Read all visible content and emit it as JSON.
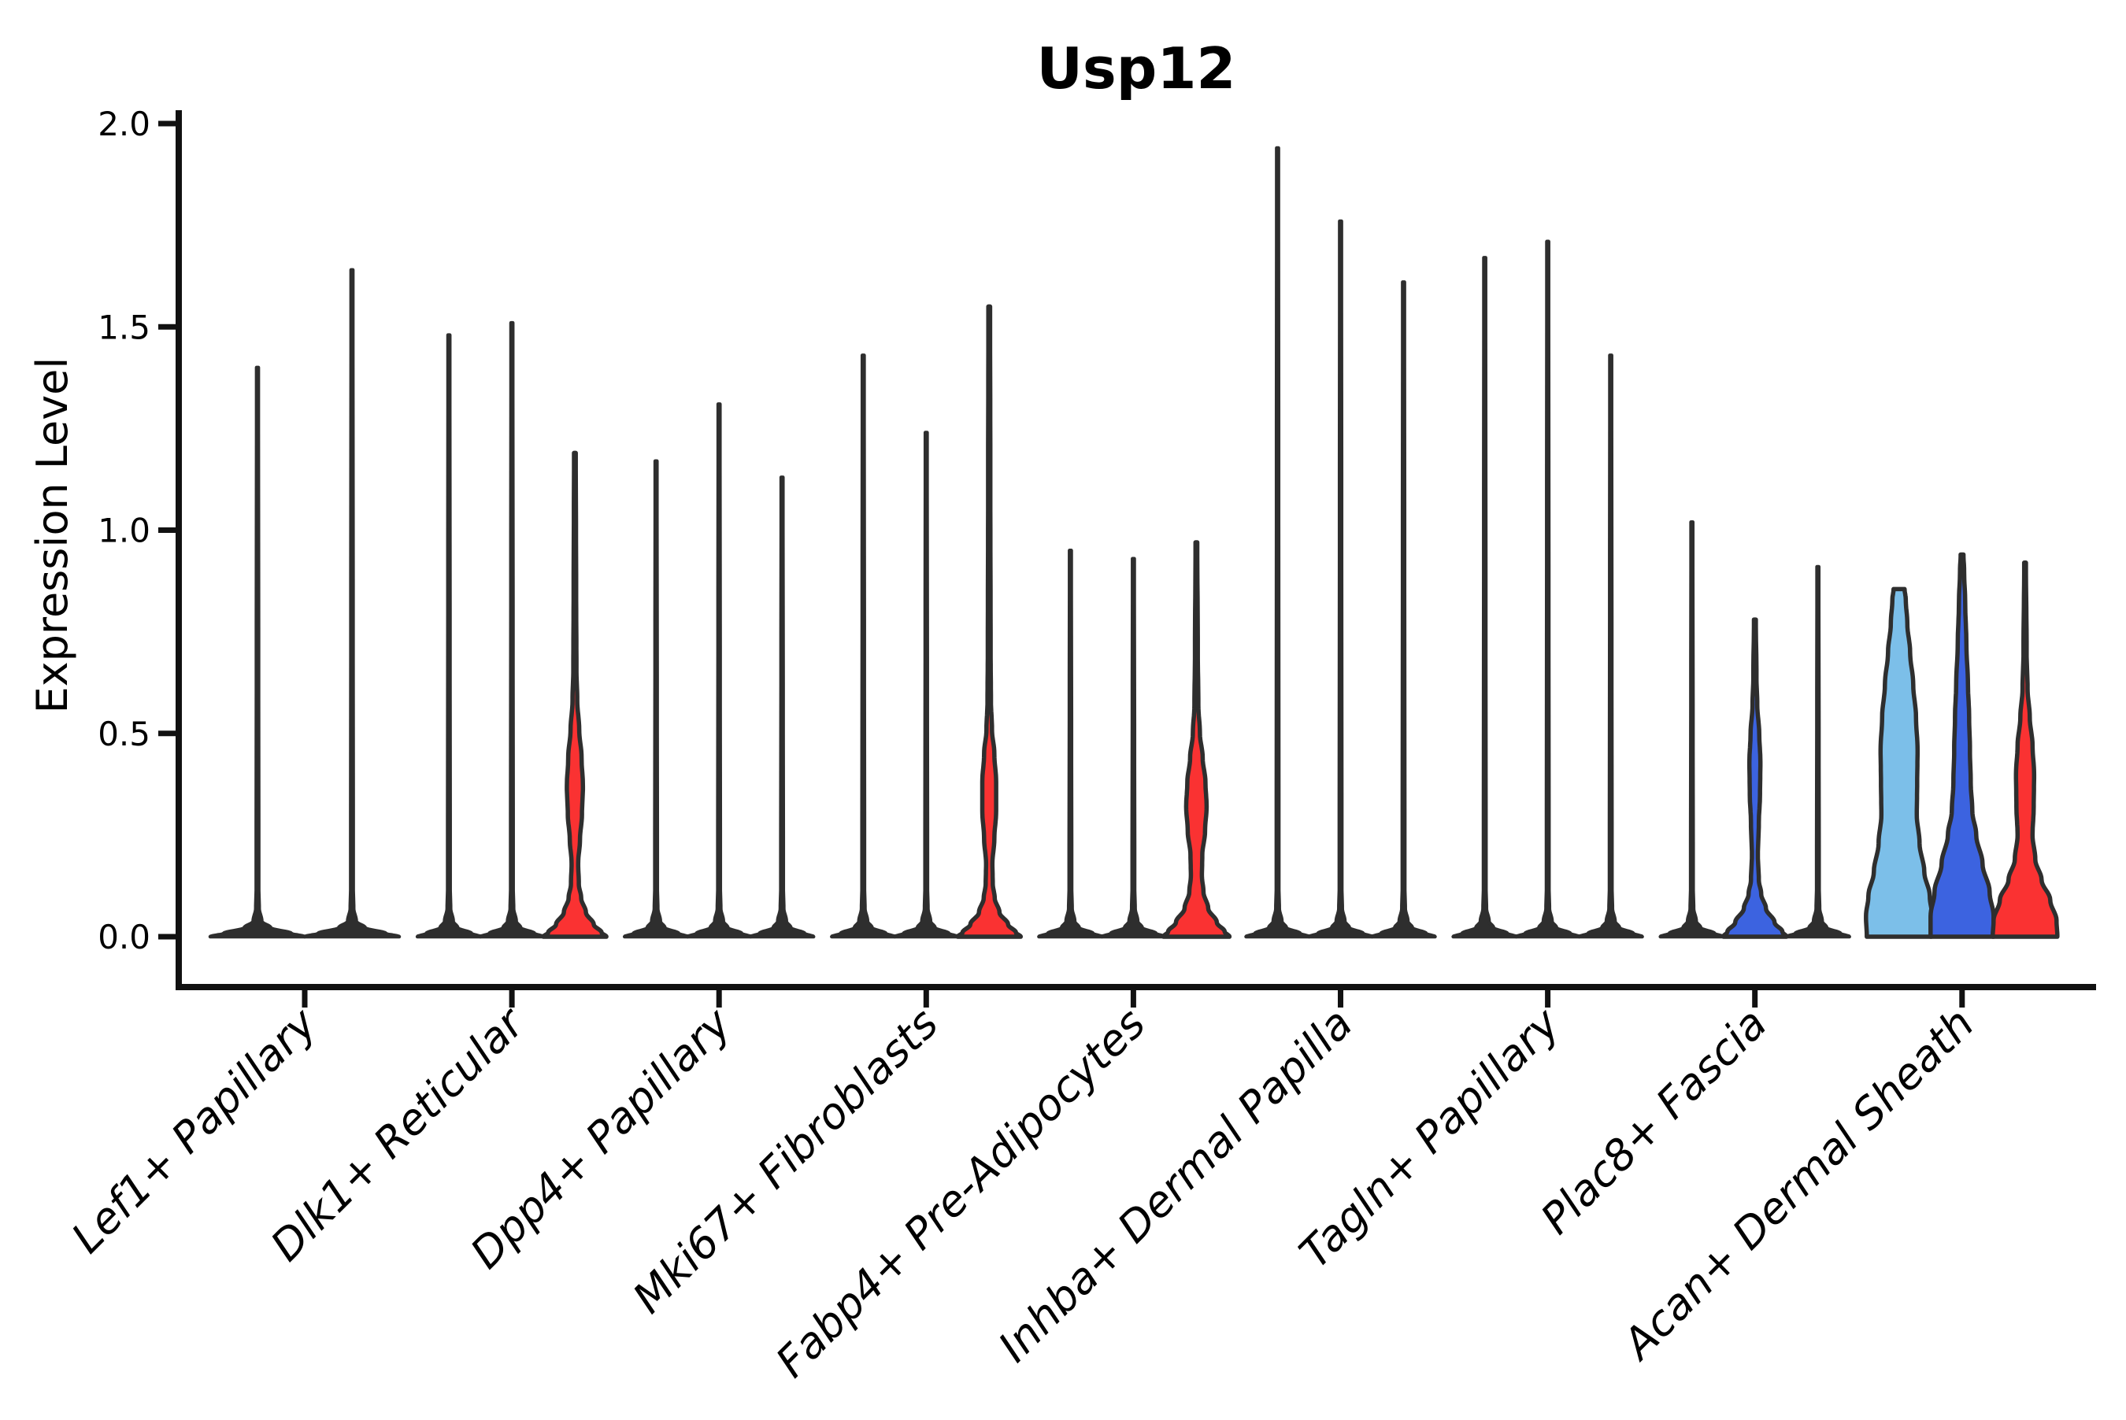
{
  "figure": {
    "kind": "violin-plot-screenshot"
  },
  "colors": {
    "background": "#ffffff",
    "axis": "#111111",
    "outline": "#2e2e2e",
    "red": "#fa3232",
    "blue": "#3c63e0",
    "lightblue": "#7cbfe9"
  },
  "chart_data": {
    "type": "violin",
    "title": "Usp12",
    "ylabel": "Expression Level",
    "xlabel": "",
    "ylim": [
      0,
      2.0
    ],
    "yticks": [
      0.0,
      0.5,
      1.0,
      1.5,
      2.0
    ],
    "grid": false,
    "legend": "none",
    "categories": [
      "Lef1+ Papillary",
      "Dlk1+ Reticular",
      "Dpp4+ Papillary",
      "Mki67+ Fibroblasts",
      "Fabp4+ Pre-Adipocytes",
      "Inhba+ Dermal Papilla",
      "Tagln+ Papillary",
      "Plac8+ Fascia",
      "Acan+ Dermal Sheath"
    ],
    "split_slot_colors": [
      "lightblue",
      "blue",
      "red"
    ],
    "violins": [
      {
        "category": 0,
        "slot": 0,
        "n": 2,
        "type": "spike",
        "fill": "outline",
        "base_hw": 60,
        "max": 1.4
      },
      {
        "category": 0,
        "slot": 1,
        "n": 2,
        "type": "spike",
        "fill": "outline",
        "base_hw": 60,
        "max": 1.64
      },
      {
        "category": 1,
        "slot": 0,
        "n": 3,
        "type": "spike",
        "fill": "outline",
        "base_hw": 40,
        "max": 1.48
      },
      {
        "category": 1,
        "slot": 1,
        "n": 3,
        "type": "spike",
        "fill": "outline",
        "base_hw": 40,
        "max": 1.51
      },
      {
        "category": 1,
        "slot": 2,
        "n": 3,
        "type": "shaped",
        "fill": "red",
        "max": 1.19,
        "profile": [
          [
            0,
            40
          ],
          [
            0.01,
            34
          ],
          [
            0.03,
            24
          ],
          [
            0.06,
            14
          ],
          [
            0.095,
            8
          ],
          [
            0.13,
            5
          ],
          [
            0.18,
            4.2
          ],
          [
            0.24,
            6.5
          ],
          [
            0.3,
            9
          ],
          [
            0.37,
            10.2
          ],
          [
            0.44,
            8.5
          ],
          [
            0.51,
            5.5
          ],
          [
            0.58,
            3
          ],
          [
            0.66,
            2
          ],
          [
            0.85,
            1.6
          ],
          [
            1.19,
            1.1
          ]
        ]
      },
      {
        "category": 2,
        "slot": 0,
        "n": 3,
        "type": "spike",
        "fill": "outline",
        "base_hw": 40,
        "max": 1.17
      },
      {
        "category": 2,
        "slot": 1,
        "n": 3,
        "type": "spike",
        "fill": "outline",
        "base_hw": 40,
        "max": 1.31
      },
      {
        "category": 2,
        "slot": 2,
        "n": 3,
        "type": "spike",
        "fill": "outline",
        "base_hw": 40,
        "max": 1.13
      },
      {
        "category": 3,
        "slot": 0,
        "n": 3,
        "type": "spike",
        "fill": "outline",
        "base_hw": 40,
        "max": 1.43
      },
      {
        "category": 3,
        "slot": 1,
        "n": 3,
        "type": "spike",
        "fill": "outline",
        "base_hw": 40,
        "max": 1.24
      },
      {
        "category": 3,
        "slot": 2,
        "n": 3,
        "type": "shaped",
        "fill": "red",
        "max": 1.55,
        "profile": [
          [
            0,
            40
          ],
          [
            0.01,
            34
          ],
          [
            0.03,
            24
          ],
          [
            0.06,
            13
          ],
          [
            0.095,
            7
          ],
          [
            0.13,
            4.5
          ],
          [
            0.18,
            4
          ],
          [
            0.24,
            6.5
          ],
          [
            0.31,
            8.8
          ],
          [
            0.38,
            8.8
          ],
          [
            0.45,
            6.5
          ],
          [
            0.51,
            3.5
          ],
          [
            0.58,
            2.2
          ],
          [
            0.7,
            1.8
          ],
          [
            1.1,
            1.4
          ],
          [
            1.55,
            1.1
          ]
        ]
      },
      {
        "category": 4,
        "slot": 0,
        "n": 3,
        "type": "spike",
        "fill": "outline",
        "base_hw": 40,
        "max": 0.95
      },
      {
        "category": 4,
        "slot": 1,
        "n": 3,
        "type": "spike",
        "fill": "outline",
        "base_hw": 40,
        "max": 0.93
      },
      {
        "category": 4,
        "slot": 2,
        "n": 3,
        "type": "shaped",
        "fill": "red",
        "max": 0.97,
        "profile": [
          [
            0,
            42
          ],
          [
            0.012,
            36
          ],
          [
            0.035,
            26
          ],
          [
            0.07,
            15
          ],
          [
            0.11,
            9
          ],
          [
            0.15,
            7
          ],
          [
            0.2,
            7.5
          ],
          [
            0.26,
            11
          ],
          [
            0.32,
            13
          ],
          [
            0.38,
            11.5
          ],
          [
            0.44,
            8
          ],
          [
            0.5,
            4.5
          ],
          [
            0.57,
            2.5
          ],
          [
            0.7,
            1.8
          ],
          [
            0.97,
            1.1
          ]
        ]
      },
      {
        "category": 5,
        "slot": 0,
        "n": 3,
        "type": "spike",
        "fill": "outline",
        "base_hw": 40,
        "max": 1.94
      },
      {
        "category": 5,
        "slot": 1,
        "n": 3,
        "type": "spike",
        "fill": "outline",
        "base_hw": 40,
        "max": 1.76
      },
      {
        "category": 5,
        "slot": 2,
        "n": 3,
        "type": "spike",
        "fill": "outline",
        "base_hw": 40,
        "max": 1.61
      },
      {
        "category": 6,
        "slot": 0,
        "n": 3,
        "type": "spike",
        "fill": "outline",
        "base_hw": 40,
        "max": 1.67
      },
      {
        "category": 6,
        "slot": 1,
        "n": 3,
        "type": "spike",
        "fill": "outline",
        "base_hw": 40,
        "max": 1.71
      },
      {
        "category": 6,
        "slot": 2,
        "n": 3,
        "type": "spike",
        "fill": "outline",
        "base_hw": 40,
        "max": 1.43
      },
      {
        "category": 7,
        "slot": 0,
        "n": 3,
        "type": "spike",
        "fill": "outline",
        "base_hw": 40,
        "max": 1.02
      },
      {
        "category": 7,
        "slot": 1,
        "n": 3,
        "type": "shaped",
        "fill": "blue",
        "max": 0.78,
        "profile": [
          [
            0,
            40
          ],
          [
            0.012,
            35
          ],
          [
            0.035,
            25
          ],
          [
            0.07,
            14
          ],
          [
            0.105,
            8
          ],
          [
            0.14,
            5
          ],
          [
            0.2,
            3.8
          ],
          [
            0.28,
            5
          ],
          [
            0.35,
            6.5
          ],
          [
            0.43,
            7
          ],
          [
            0.5,
            5.5
          ],
          [
            0.57,
            3
          ],
          [
            0.64,
            2
          ],
          [
            0.78,
            1.2
          ]
        ]
      },
      {
        "category": 7,
        "slot": 2,
        "n": 3,
        "type": "spike",
        "fill": "outline",
        "base_hw": 40,
        "max": 0.91
      },
      {
        "category": 8,
        "slot": 0,
        "n": 3,
        "type": "shaped",
        "fill": "lightblue",
        "max": 0.86,
        "profile": [
          [
            0,
            41
          ],
          [
            0.05,
            42
          ],
          [
            0.1,
            39
          ],
          [
            0.16,
            32
          ],
          [
            0.23,
            26
          ],
          [
            0.3,
            22.5
          ],
          [
            0.38,
            23
          ],
          [
            0.46,
            23.5
          ],
          [
            0.54,
            21.5
          ],
          [
            0.62,
            18
          ],
          [
            0.7,
            14
          ],
          [
            0.77,
            10.5
          ],
          [
            0.83,
            8.5
          ],
          [
            0.855,
            7
          ]
        ]
      },
      {
        "category": 8,
        "slot": 1,
        "n": 3,
        "type": "shaped",
        "fill": "blue",
        "max": 0.94,
        "profile": [
          [
            0,
            40
          ],
          [
            0.05,
            40
          ],
          [
            0.11,
            35
          ],
          [
            0.18,
            26
          ],
          [
            0.25,
            18
          ],
          [
            0.31,
            13
          ],
          [
            0.38,
            11
          ],
          [
            0.46,
            10
          ],
          [
            0.54,
            9
          ],
          [
            0.62,
            7.5
          ],
          [
            0.72,
            5.5
          ],
          [
            0.82,
            4
          ],
          [
            0.9,
            2.6
          ],
          [
            0.94,
            1.8
          ]
        ]
      },
      {
        "category": 8,
        "slot": 2,
        "n": 3,
        "type": "shaped",
        "fill": "red",
        "max": 0.92,
        "profile": [
          [
            0,
            41
          ],
          [
            0.04,
            40
          ],
          [
            0.09,
            32
          ],
          [
            0.14,
            21
          ],
          [
            0.19,
            13
          ],
          [
            0.25,
            9.5
          ],
          [
            0.32,
            11
          ],
          [
            0.4,
            11.5
          ],
          [
            0.47,
            9.5
          ],
          [
            0.54,
            6
          ],
          [
            0.61,
            3.2
          ],
          [
            0.7,
            2
          ],
          [
            0.92,
            1.1
          ]
        ]
      }
    ]
  }
}
